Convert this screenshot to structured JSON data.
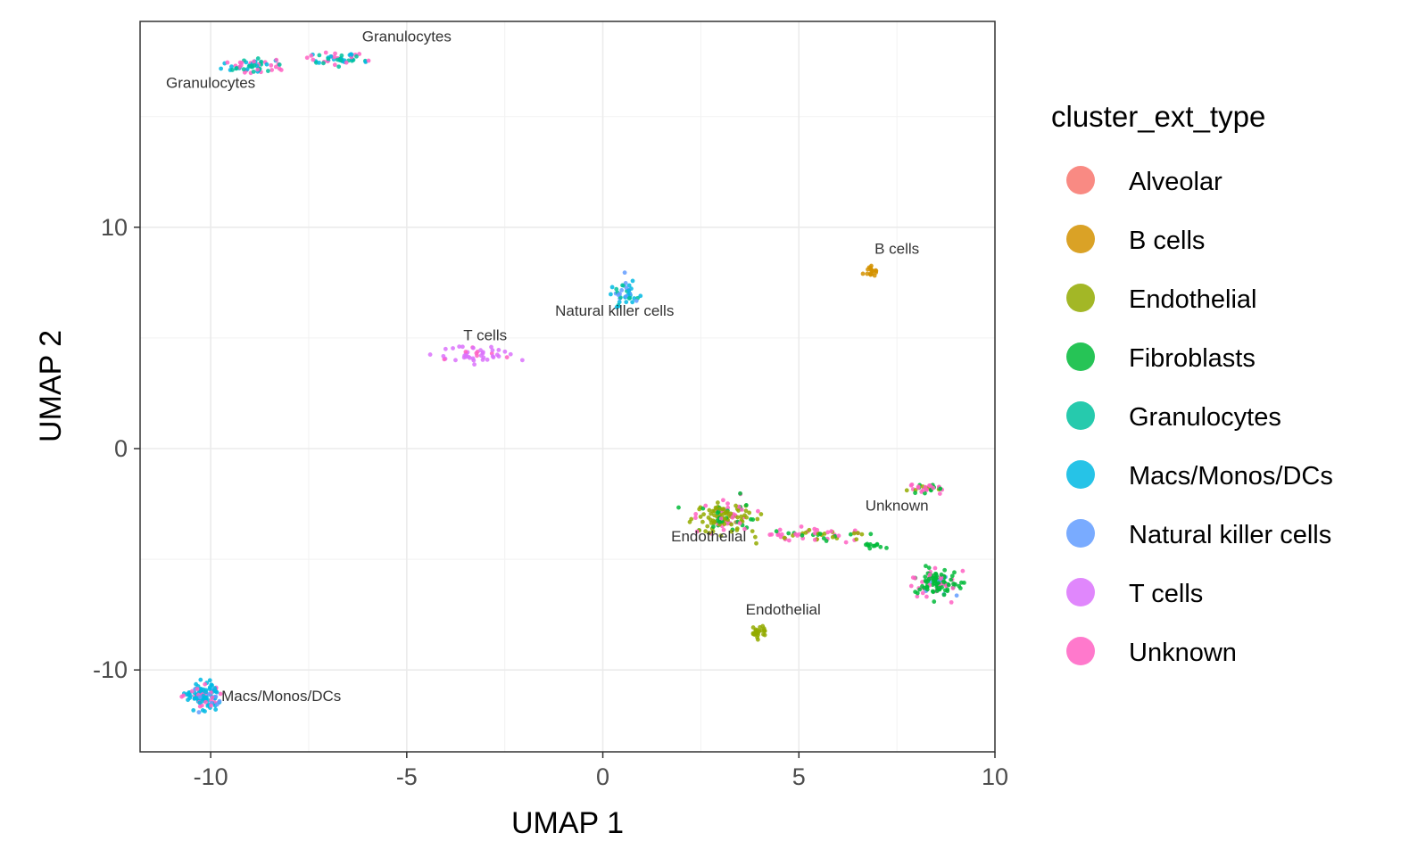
{
  "chart_data": {
    "type": "scatter",
    "xlabel": "UMAP 1",
    "ylabel": "UMAP 2",
    "xlim": [
      -11.8,
      10
    ],
    "ylim": [
      -13.7,
      19.3
    ],
    "x_ticks": [
      -10,
      -5,
      0,
      5,
      10
    ],
    "y_ticks": [
      -10,
      0,
      10
    ],
    "x_tick_labels": [
      "-10",
      "-5",
      "0",
      "5",
      "10"
    ],
    "y_tick_labels": [
      "-10",
      "0",
      "10"
    ],
    "grid": true,
    "legend": {
      "title": "cluster_ext_type",
      "position": "right",
      "entries": [
        {
          "name": "Alveolar",
          "color": "#F8766D"
        },
        {
          "name": "B cells",
          "color": "#D39200"
        },
        {
          "name": "Endothelial",
          "color": "#93AA00"
        },
        {
          "name": "Fibroblasts",
          "color": "#00BA38"
        },
        {
          "name": "Granulocytes",
          "color": "#00C19F"
        },
        {
          "name": "Macs/Monos/DCs",
          "color": "#00B9E3"
        },
        {
          "name": "Natural killer cells",
          "color": "#619CFF"
        },
        {
          "name": "T cells",
          "color": "#DB72FB"
        },
        {
          "name": "Unknown",
          "color": "#FF61C3"
        }
      ]
    },
    "annotations": [
      {
        "text": "Granulocytes",
        "x": -5.0,
        "y": 18.4
      },
      {
        "text": "Granulocytes",
        "x": -10.0,
        "y": 16.3
      },
      {
        "text": "B cells",
        "x": 7.5,
        "y": 8.8
      },
      {
        "text": "Natural killer cells",
        "x": 0.3,
        "y": 6.0
      },
      {
        "text": "T cells",
        "x": -3.0,
        "y": 4.9
      },
      {
        "text": "Unknown",
        "x": 7.5,
        "y": -2.8
      },
      {
        "text": "Endothelial",
        "x": 2.7,
        "y": -4.2
      },
      {
        "text": "Endothelial",
        "x": 4.6,
        "y": -7.5
      },
      {
        "text": "Macs/Monos/DCs",
        "x": -8.2,
        "y": -11.4
      }
    ],
    "clusters": [
      {
        "cx": -8.9,
        "cy": 17.3,
        "sx": 0.45,
        "sy": 0.18,
        "n": 60,
        "mix": {
          "Granulocytes": 0.35,
          "Macs/Monos/DCs": 0.3,
          "Unknown": 0.35
        }
      },
      {
        "cx": -6.8,
        "cy": 17.6,
        "sx": 0.35,
        "sy": 0.15,
        "n": 50,
        "mix": {
          "Granulocytes": 0.4,
          "Macs/Monos/DCs": 0.3,
          "Unknown": 0.3
        }
      },
      {
        "cx": 6.85,
        "cy": 8.0,
        "sx": 0.1,
        "sy": 0.12,
        "n": 18,
        "mix": {
          "B cells": 1.0
        }
      },
      {
        "cx": 0.6,
        "cy": 7.0,
        "sx": 0.2,
        "sy": 0.25,
        "n": 40,
        "mix": {
          "Macs/Monos/DCs": 0.45,
          "Natural killer cells": 0.4,
          "Granulocytes": 0.15
        }
      },
      {
        "cx": -3.1,
        "cy": 4.2,
        "sx": 0.45,
        "sy": 0.2,
        "n": 45,
        "mix": {
          "T cells": 0.9,
          "Unknown": 0.1
        }
      },
      {
        "cx": 3.1,
        "cy": -3.1,
        "sx": 0.35,
        "sy": 0.35,
        "n": 140,
        "mix": {
          "Endothelial": 0.55,
          "Fibroblasts": 0.2,
          "Unknown": 0.25
        }
      },
      {
        "cx": 5.5,
        "cy": -3.9,
        "sx": 0.7,
        "sy": 0.15,
        "n": 60,
        "mix": {
          "Endothelial": 0.35,
          "Unknown": 0.45,
          "Fibroblasts": 0.2
        }
      },
      {
        "cx": 6.9,
        "cy": -4.4,
        "sx": 0.12,
        "sy": 0.08,
        "n": 12,
        "mix": {
          "Fibroblasts": 1.0
        }
      },
      {
        "cx": 8.2,
        "cy": -1.8,
        "sx": 0.2,
        "sy": 0.12,
        "n": 35,
        "mix": {
          "Unknown": 0.6,
          "Endothelial": 0.25,
          "Fibroblasts": 0.15
        }
      },
      {
        "cx": 8.5,
        "cy": -6.0,
        "sx": 0.28,
        "sy": 0.32,
        "n": 120,
        "mix": {
          "Fibroblasts": 0.7,
          "Unknown": 0.25,
          "Natural killer cells": 0.05
        }
      },
      {
        "cx": 4.0,
        "cy": -8.3,
        "sx": 0.12,
        "sy": 0.12,
        "n": 25,
        "mix": {
          "Endothelial": 1.0
        }
      },
      {
        "cx": -10.2,
        "cy": -11.2,
        "sx": 0.22,
        "sy": 0.32,
        "n": 110,
        "mix": {
          "Macs/Monos/DCs": 0.65,
          "Unknown": 0.25,
          "Natural killer cells": 0.1
        }
      }
    ]
  }
}
